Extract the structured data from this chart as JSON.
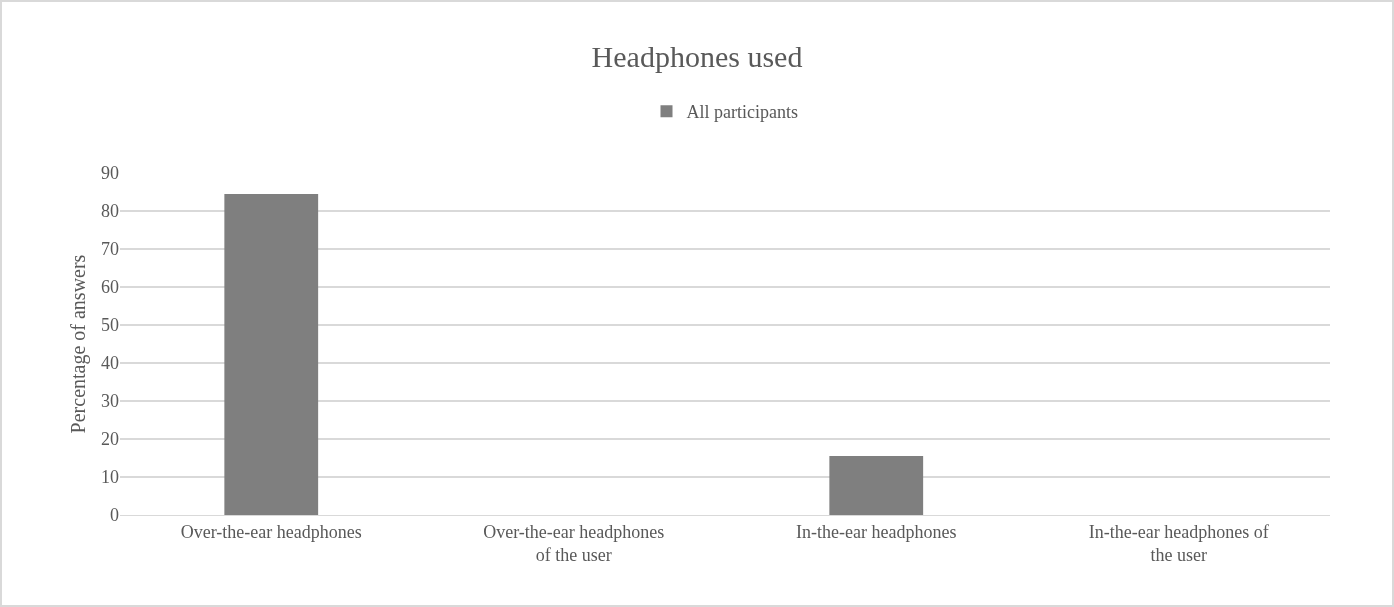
{
  "chart_data": {
    "type": "bar",
    "title": "Headphones used",
    "ylabel": "Percentage of answers",
    "categories": [
      "Over-the-ear headphones",
      "Over-the-ear headphones of the user",
      "In-the-ear headphones",
      "In-the-ear headphones of the user"
    ],
    "series": [
      {
        "name": "All participants",
        "color": "#7f7f7f",
        "values": [
          84.5,
          0,
          15.5,
          0
        ]
      }
    ],
    "ylim": [
      0,
      90
    ],
    "yticks": [
      0,
      10,
      20,
      30,
      40,
      50,
      60,
      70,
      80,
      90
    ],
    "grid": "y",
    "legend": "top"
  }
}
